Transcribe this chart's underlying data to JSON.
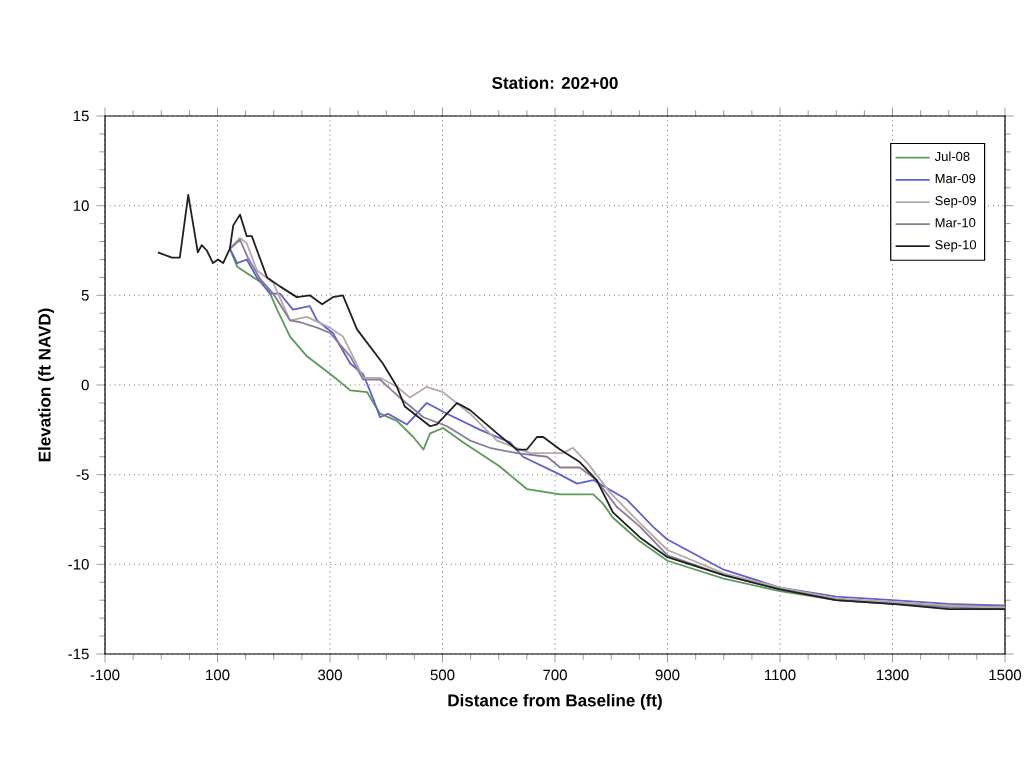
{
  "chart_data": {
    "type": "line",
    "title": "Station: 202+00",
    "xlabel": "Distance from Baseline (ft)",
    "ylabel": "Elevation (ft NAVD)",
    "xlim": [
      -100,
      1500
    ],
    "xticks": [
      -100,
      100,
      300,
      500,
      700,
      900,
      1100,
      1300,
      1500
    ],
    "ylim": [
      -15,
      15
    ],
    "yticks": [
      -15,
      -10,
      -5,
      0,
      5,
      10,
      15
    ],
    "grid": true,
    "legend": "top right",
    "marker": "none",
    "line_style": "solid",
    "series": [
      {
        "name": "Jul-08",
        "color": "#5a9a5a",
        "x": [
          122,
          135,
          188,
          206,
          229,
          259,
          305,
          336,
          366,
          389,
          419,
          448,
          466,
          478,
          501,
          537,
          600,
          650,
          709,
          768,
          785,
          803,
          850,
          900,
          1000,
          1100,
          1200,
          1300,
          1400,
          1500
        ],
        "values": [
          7.6,
          6.6,
          5.5,
          4.2,
          2.7,
          1.6,
          0.5,
          -0.3,
          -0.4,
          -1.6,
          -2.0,
          -2.9,
          -3.6,
          -2.7,
          -2.4,
          -3.2,
          -4.5,
          -5.8,
          -6.1,
          -6.1,
          -6.6,
          -7.4,
          -8.7,
          -9.8,
          -10.8,
          -11.5,
          -12.0,
          -12.2,
          -12.3,
          -12.3
        ]
      },
      {
        "name": "Mar-09",
        "color": "#6060d0",
        "x": [
          122,
          135,
          152,
          170,
          193,
          211,
          234,
          264,
          277,
          305,
          336,
          359,
          376,
          389,
          403,
          437,
          472,
          508,
          567,
          620,
          643,
          709,
          739,
          768,
          828,
          874,
          899,
          1000,
          1100,
          1200,
          1300,
          1400,
          1500
        ],
        "values": [
          7.6,
          6.8,
          7.0,
          6.0,
          5.1,
          5.1,
          4.2,
          4.4,
          3.6,
          2.9,
          1.2,
          0.6,
          -0.7,
          -1.8,
          -1.6,
          -2.2,
          -1.0,
          -1.6,
          -2.5,
          -3.2,
          -4.0,
          -5.0,
          -5.5,
          -5.3,
          -6.4,
          -7.9,
          -8.6,
          -10.3,
          -11.3,
          -11.8,
          -12.0,
          -12.2,
          -12.3
        ]
      },
      {
        "name": "Sep-09",
        "color": "#b8a8a8",
        "x": [
          122,
          140,
          152,
          170,
          199,
          229,
          259,
          300,
          323,
          336,
          359,
          389,
          419,
          442,
          472,
          501,
          549,
          597,
          656,
          714,
          732,
          759,
          798,
          851,
          900,
          1000,
          1100,
          1200,
          1300,
          1400,
          1500
        ],
        "values": [
          7.6,
          8.2,
          7.9,
          6.4,
          5.7,
          3.6,
          3.8,
          3.2,
          2.7,
          1.9,
          0.4,
          0.4,
          -0.1,
          -0.7,
          -0.1,
          -0.4,
          -1.6,
          -3.1,
          -3.8,
          -3.8,
          -3.5,
          -4.4,
          -6.0,
          -7.7,
          -9.2,
          -10.5,
          -11.3,
          -11.9,
          -12.1,
          -12.3,
          -12.4
        ]
      },
      {
        "name": "Mar-10",
        "color": "#8a7a9a",
        "x": [
          122,
          140,
          154,
          176,
          199,
          229,
          247,
          277,
          300,
          336,
          359,
          389,
          424,
          466,
          508,
          549,
          584,
          632,
          686,
          709,
          744,
          774,
          810,
          851,
          900,
          1000,
          1100,
          1200,
          1300,
          1400,
          1500
        ],
        "values": [
          7.6,
          8.1,
          7.1,
          5.9,
          5.1,
          3.6,
          3.5,
          3.2,
          2.9,
          1.6,
          0.3,
          0.3,
          -0.7,
          -1.8,
          -2.3,
          -3.1,
          -3.5,
          -3.8,
          -4.0,
          -4.6,
          -4.6,
          -5.3,
          -6.8,
          -7.9,
          -9.5,
          -10.6,
          -11.4,
          -12.0,
          -12.2,
          -12.4,
          -12.5
        ]
      },
      {
        "name": "Sep-10",
        "color": "#202020",
        "x": [
          -6,
          19,
          33,
          48,
          65,
          72,
          81,
          92,
          101,
          110,
          122,
          128,
          140,
          152,
          161,
          188,
          211,
          241,
          264,
          286,
          305,
          323,
          348,
          394,
          419,
          433,
          478,
          490,
          526,
          549,
          597,
          632,
          650,
          668,
          679,
          709,
          744,
          774,
          803,
          851,
          900,
          1000,
          1100,
          1200,
          1300,
          1400,
          1500
        ],
        "values": [
          7.4,
          7.1,
          7.1,
          10.6,
          7.4,
          7.8,
          7.5,
          6.8,
          7.0,
          6.8,
          7.6,
          8.9,
          9.5,
          8.3,
          8.3,
          6.0,
          5.5,
          4.9,
          5.0,
          4.5,
          4.9,
          5.0,
          3.1,
          1.2,
          -0.1,
          -1.2,
          -2.3,
          -2.2,
          -1.0,
          -1.4,
          -2.7,
          -3.6,
          -3.6,
          -2.9,
          -2.9,
          -3.6,
          -4.3,
          -5.3,
          -7.1,
          -8.5,
          -9.6,
          -10.6,
          -11.4,
          -12.0,
          -12.2,
          -12.5,
          -12.5
        ]
      }
    ]
  }
}
